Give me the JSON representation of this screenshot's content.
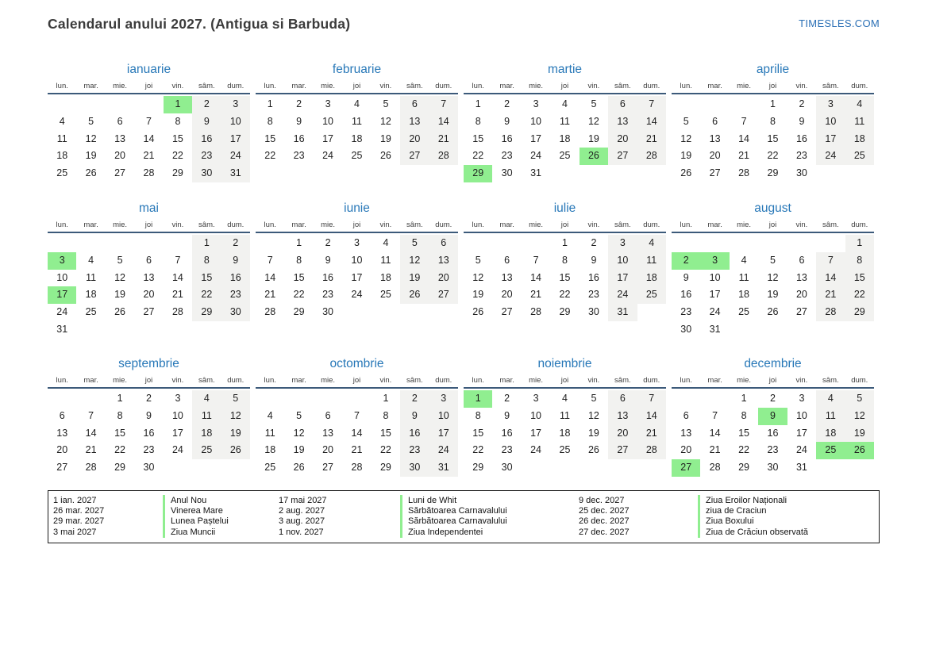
{
  "header": {
    "title": "Calendarul anului 2027. (Antigua si Barbuda)",
    "brand": "TIMESLES.COM"
  },
  "colors": {
    "accent_blue": "#2878b8",
    "brand_blue": "#2a6fb5",
    "divider_blue": "#3c5a7a",
    "holiday_green": "#90ee90",
    "weekend_gray": "#f2f2f0"
  },
  "weekdays": [
    "lun.",
    "mar.",
    "mie.",
    "joi",
    "vin.",
    "sâm.",
    "dum."
  ],
  "months": [
    {
      "name": "ianuarie",
      "highlights": [
        1
      ],
      "weeks": [
        [
          null,
          null,
          null,
          null,
          1,
          2,
          3
        ],
        [
          4,
          5,
          6,
          7,
          8,
          9,
          10
        ],
        [
          11,
          12,
          13,
          14,
          15,
          16,
          17
        ],
        [
          18,
          19,
          20,
          21,
          22,
          23,
          24
        ],
        [
          25,
          26,
          27,
          28,
          29,
          30,
          31
        ]
      ]
    },
    {
      "name": "februarie",
      "highlights": [],
      "weeks": [
        [
          1,
          2,
          3,
          4,
          5,
          6,
          7
        ],
        [
          8,
          9,
          10,
          11,
          12,
          13,
          14
        ],
        [
          15,
          16,
          17,
          18,
          19,
          20,
          21
        ],
        [
          22,
          23,
          24,
          25,
          26,
          27,
          28
        ]
      ]
    },
    {
      "name": "martie",
      "highlights": [
        26,
        29
      ],
      "weeks": [
        [
          1,
          2,
          3,
          4,
          5,
          6,
          7
        ],
        [
          8,
          9,
          10,
          11,
          12,
          13,
          14
        ],
        [
          15,
          16,
          17,
          18,
          19,
          20,
          21
        ],
        [
          22,
          23,
          24,
          25,
          26,
          27,
          28
        ],
        [
          29,
          30,
          31,
          null,
          null,
          null,
          null
        ]
      ]
    },
    {
      "name": "aprilie",
      "highlights": [],
      "weeks": [
        [
          null,
          null,
          null,
          1,
          2,
          3,
          4
        ],
        [
          5,
          6,
          7,
          8,
          9,
          10,
          11
        ],
        [
          12,
          13,
          14,
          15,
          16,
          17,
          18
        ],
        [
          19,
          20,
          21,
          22,
          23,
          24,
          25
        ],
        [
          26,
          27,
          28,
          29,
          30,
          null,
          null
        ]
      ]
    },
    {
      "name": "mai",
      "highlights": [
        3,
        17
      ],
      "weeks": [
        [
          null,
          null,
          null,
          null,
          null,
          1,
          2
        ],
        [
          3,
          4,
          5,
          6,
          7,
          8,
          9
        ],
        [
          10,
          11,
          12,
          13,
          14,
          15,
          16
        ],
        [
          17,
          18,
          19,
          20,
          21,
          22,
          23
        ],
        [
          24,
          25,
          26,
          27,
          28,
          29,
          30
        ],
        [
          31,
          null,
          null,
          null,
          null,
          null,
          null
        ]
      ]
    },
    {
      "name": "iunie",
      "highlights": [],
      "weeks": [
        [
          null,
          1,
          2,
          3,
          4,
          5,
          6
        ],
        [
          7,
          8,
          9,
          10,
          11,
          12,
          13
        ],
        [
          14,
          15,
          16,
          17,
          18,
          19,
          20
        ],
        [
          21,
          22,
          23,
          24,
          25,
          26,
          27
        ],
        [
          28,
          29,
          30,
          null,
          null,
          null,
          null
        ]
      ]
    },
    {
      "name": "iulie",
      "highlights": [],
      "weeks": [
        [
          null,
          null,
          null,
          1,
          2,
          3,
          4
        ],
        [
          5,
          6,
          7,
          8,
          9,
          10,
          11
        ],
        [
          12,
          13,
          14,
          15,
          16,
          17,
          18
        ],
        [
          19,
          20,
          21,
          22,
          23,
          24,
          25
        ],
        [
          26,
          27,
          28,
          29,
          30,
          31,
          null
        ]
      ]
    },
    {
      "name": "august",
      "highlights": [
        2,
        3
      ],
      "weeks": [
        [
          null,
          null,
          null,
          null,
          null,
          null,
          1
        ],
        [
          2,
          3,
          4,
          5,
          6,
          7,
          8
        ],
        [
          9,
          10,
          11,
          12,
          13,
          14,
          15
        ],
        [
          16,
          17,
          18,
          19,
          20,
          21,
          22
        ],
        [
          23,
          24,
          25,
          26,
          27,
          28,
          29
        ],
        [
          30,
          31,
          null,
          null,
          null,
          null,
          null
        ]
      ]
    },
    {
      "name": "septembrie",
      "highlights": [],
      "weeks": [
        [
          null,
          null,
          1,
          2,
          3,
          4,
          5
        ],
        [
          6,
          7,
          8,
          9,
          10,
          11,
          12
        ],
        [
          13,
          14,
          15,
          16,
          17,
          18,
          19
        ],
        [
          20,
          21,
          22,
          23,
          24,
          25,
          26
        ],
        [
          27,
          28,
          29,
          30,
          null,
          null,
          null
        ]
      ]
    },
    {
      "name": "octombrie",
      "highlights": [],
      "weeks": [
        [
          null,
          null,
          null,
          null,
          1,
          2,
          3
        ],
        [
          4,
          5,
          6,
          7,
          8,
          9,
          10
        ],
        [
          11,
          12,
          13,
          14,
          15,
          16,
          17
        ],
        [
          18,
          19,
          20,
          21,
          22,
          23,
          24
        ],
        [
          25,
          26,
          27,
          28,
          29,
          30,
          31
        ]
      ]
    },
    {
      "name": "noiembrie",
      "highlights": [
        1
      ],
      "weeks": [
        [
          1,
          2,
          3,
          4,
          5,
          6,
          7
        ],
        [
          8,
          9,
          10,
          11,
          12,
          13,
          14
        ],
        [
          15,
          16,
          17,
          18,
          19,
          20,
          21
        ],
        [
          22,
          23,
          24,
          25,
          26,
          27,
          28
        ],
        [
          29,
          30,
          null,
          null,
          null,
          null,
          null
        ]
      ]
    },
    {
      "name": "decembrie",
      "highlights": [
        9,
        25,
        26,
        27
      ],
      "weeks": [
        [
          null,
          null,
          1,
          2,
          3,
          4,
          5
        ],
        [
          6,
          7,
          8,
          9,
          10,
          11,
          12
        ],
        [
          13,
          14,
          15,
          16,
          17,
          18,
          19
        ],
        [
          20,
          21,
          22,
          23,
          24,
          25,
          26
        ],
        [
          27,
          28,
          29,
          30,
          31,
          null,
          null
        ]
      ]
    }
  ],
  "legend": {
    "columns": [
      [
        {
          "date": "1 ian. 2027",
          "name": "Anul Nou"
        },
        {
          "date": "26 mar. 2027",
          "name": "Vinerea Mare"
        },
        {
          "date": "29 mar. 2027",
          "name": "Lunea Paștelui"
        },
        {
          "date": "3 mai 2027",
          "name": "Ziua Muncii"
        }
      ],
      [
        {
          "date": "17 mai 2027",
          "name": "Luni de Whit"
        },
        {
          "date": "2 aug. 2027",
          "name": "Sărbătoarea Carnavalului"
        },
        {
          "date": "3 aug. 2027",
          "name": "Sărbătoarea Carnavalului"
        },
        {
          "date": "1 nov. 2027",
          "name": "Ziua Independentei"
        }
      ],
      [
        {
          "date": "9 dec. 2027",
          "name": "Ziua Eroilor Naționali"
        },
        {
          "date": "25 dec. 2027",
          "name": "ziua de Craciun"
        },
        {
          "date": "26 dec. 2027",
          "name": "Ziua Boxului"
        },
        {
          "date": "27 dec. 2027",
          "name": "Ziua de Crăciun observată"
        }
      ]
    ]
  }
}
